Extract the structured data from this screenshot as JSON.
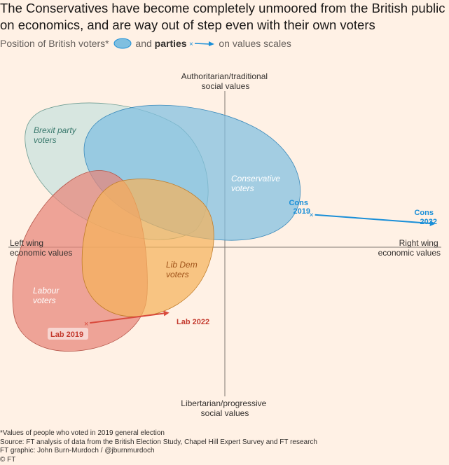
{
  "header": {
    "title": "The Conservatives have become completely unmoored from the British public on economics, and are way out of step even with their own voters",
    "legend_voters": "Position of British voters*",
    "legend_and": "and",
    "legend_parties": "parties",
    "legend_tail": "on values scales"
  },
  "colors": {
    "background": "#fff1e5",
    "brexit": "#cde4df",
    "conservative": "#7fbfe0",
    "labour": "#e88578",
    "libdem": "#f5b35c",
    "cons_arrow": "#1a8fd8",
    "lab_arrow": "#d94b3d"
  },
  "chart_data": {
    "type": "scatter",
    "title": "The Conservatives have become completely unmoored from the British public on economics, and are way out of step even with their own voters",
    "axes": {
      "top": "Authoritarian/traditional social values",
      "bottom": "Libertarian/progressive social values",
      "left": "Left wing economic values",
      "right": "Right wing economic values"
    },
    "axis_labels": {
      "top": [
        "Authoritarian/traditional",
        "social values"
      ],
      "bottom": [
        "Libertarian/progressive",
        "social values"
      ],
      "left": [
        "Left wing",
        "economic values"
      ],
      "right": [
        "Right wing",
        "economic values"
      ]
    },
    "x_range": [
      -1,
      1
    ],
    "y_range": [
      -1,
      1
    ],
    "voter_groups": [
      {
        "name": "Brexit party voters",
        "label_lines": [
          "Brexit party",
          "voters"
        ],
        "color": "#cde4df"
      },
      {
        "name": "Conservative voters",
        "label_lines": [
          "Conservative",
          "voters"
        ],
        "color": "#7fbfe0"
      },
      {
        "name": "Labour voters",
        "label_lines": [
          "Labour",
          "voters"
        ],
        "color": "#e88578"
      },
      {
        "name": "Lib Dem voters",
        "label_lines": [
          "Lib Dem",
          "voters"
        ],
        "color": "#f5b35c"
      }
    ],
    "party_moves": [
      {
        "party": "Conservatives",
        "from": {
          "label": "Cons 2019",
          "label_lines": [
            "Cons",
            "2019"
          ],
          "x": 0.4,
          "y": 0.21
        },
        "to": {
          "label": "Cons 2022",
          "label_lines": [
            "Cons",
            "2022"
          ],
          "x": 0.98,
          "y": 0.15
        },
        "color": "#1a8fd8"
      },
      {
        "party": "Labour",
        "from": {
          "label": "Lab 2019",
          "x": -0.64,
          "y": -0.49
        },
        "to": {
          "label": "Lab 2022",
          "x": -0.25,
          "y": -0.42
        },
        "color": "#d94b3d"
      }
    ]
  },
  "footer": {
    "footnote": "*Values of people who voted in 2019 general election",
    "source": "Source: FT analysis of data from the British Election Study, Chapel Hill Expert Survey and FT research",
    "graphic": "FT graphic: John Burn-Murdoch / @jburnmurdoch",
    "copyright": "© FT"
  }
}
